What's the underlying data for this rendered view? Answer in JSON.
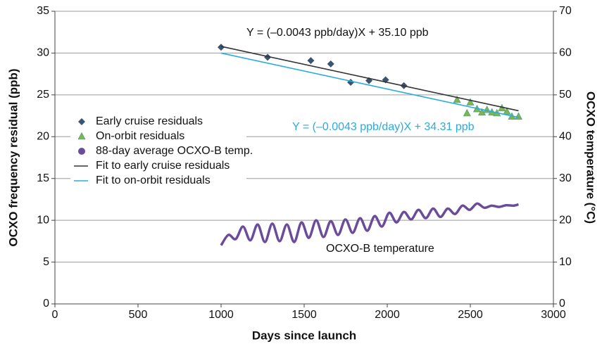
{
  "chart_data": {
    "type": "scatter",
    "xlabel": "Days since launch",
    "ylabel": "OCXO frequency residual (ppb)",
    "y2label": "OCXO temperature (°C)",
    "xlim": [
      0,
      3000
    ],
    "xticks": [
      0,
      500,
      1000,
      1500,
      2000,
      2500,
      3000
    ],
    "ylim": [
      0,
      35
    ],
    "yticks": [
      0,
      5,
      10,
      15,
      20,
      25,
      30,
      35
    ],
    "y2lim": [
      0,
      70
    ],
    "y2ticks": [
      0,
      10,
      20,
      30,
      40,
      50,
      60,
      70
    ],
    "grid": true,
    "annotations": [
      "Y = (–0.0043 ppb/day)X + 35.10 ppb",
      "Y = (–0.0043 ppb/day)X + 34.31 ppb",
      "OCXO-B temperature"
    ],
    "series": [
      {
        "name": "Early cruise residuals",
        "color": "#3b5470",
        "marker": "diamond",
        "line": false,
        "x": [
          1000,
          1280,
          1540,
          1660,
          1780,
          1890,
          1990,
          2100
        ],
        "values": [
          30.7,
          29.5,
          29.1,
          28.7,
          26.5,
          26.7,
          26.8,
          26.1
        ]
      },
      {
        "name": "On-orbit residuals",
        "color": "#7fb54e",
        "marker": "triangle",
        "line": false,
        "x": [
          2420,
          2480,
          2500,
          2540,
          2570,
          2600,
          2630,
          2660,
          2690,
          2720,
          2750,
          2790
        ],
        "values": [
          24.4,
          22.8,
          24.1,
          23.3,
          22.9,
          23.2,
          22.9,
          22.8,
          23.4,
          23.0,
          22.4,
          22.4
        ]
      },
      {
        "name": "88-day average OCXO-B temp.",
        "color": "#6b4c9a",
        "marker": "circle",
        "line": true,
        "axis": "y2",
        "x": [
          1000,
          1044,
          1088,
          1132,
          1176,
          1220,
          1264,
          1308,
          1352,
          1396,
          1440,
          1484,
          1528,
          1572,
          1616,
          1660,
          1704,
          1748,
          1792,
          1836,
          1880,
          1924,
          1968,
          2012,
          2056,
          2100,
          2144,
          2188,
          2232,
          2276,
          2320,
          2364,
          2408,
          2452,
          2496,
          2540,
          2584,
          2628,
          2672,
          2716,
          2760,
          2790
        ],
        "values": [
          14.0,
          16.5,
          15.5,
          18.5,
          15.2,
          19.0,
          14.8,
          19.2,
          15.0,
          19.0,
          14.8,
          19.5,
          15.8,
          20.0,
          16.0,
          19.8,
          16.5,
          20.2,
          17.0,
          20.5,
          17.5,
          21.0,
          18.5,
          21.8,
          19.5,
          22.0,
          20.2,
          22.5,
          20.5,
          22.8,
          20.8,
          22.8,
          21.5,
          23.5,
          22.5,
          24.0,
          23.0,
          23.5,
          23.2,
          23.6,
          23.5,
          23.8
        ]
      },
      {
        "name": "Fit to early cruise residuals",
        "color": "#333333",
        "marker": "none",
        "line": true,
        "x": [
          1000,
          2790
        ],
        "values": [
          30.8,
          23.1
        ]
      },
      {
        "name": "Fit to on-orbit residuals",
        "color": "#29abe2",
        "marker": "none",
        "line": true,
        "x": [
          1000,
          2790
        ],
        "values": [
          30.0,
          22.3
        ]
      }
    ]
  }
}
